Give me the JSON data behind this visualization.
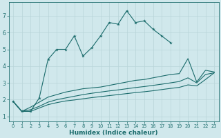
{
  "title": "",
  "xlabel": "Humidex (Indice chaleur)",
  "bg_color": "#d0e8ec",
  "grid_color": "#b8d4d8",
  "line_color": "#1a6b6b",
  "x": [
    0,
    1,
    2,
    3,
    4,
    5,
    6,
    7,
    8,
    9,
    10,
    11,
    12,
    13,
    14,
    15,
    16,
    17,
    18,
    19,
    20,
    21,
    22,
    23
  ],
  "line1_x": [
    0,
    1,
    2,
    3,
    4,
    5,
    6,
    7,
    8,
    9,
    10,
    11,
    12,
    13,
    14,
    15,
    16,
    17,
    18
  ],
  "line1_y": [
    1.9,
    1.3,
    1.3,
    2.1,
    4.4,
    5.0,
    5.0,
    5.8,
    4.6,
    5.1,
    5.8,
    6.6,
    6.5,
    7.3,
    6.6,
    6.7,
    6.2,
    5.8,
    5.4
  ],
  "line3_x": [
    0,
    1,
    2,
    3,
    4,
    5,
    6,
    7,
    8,
    9,
    10,
    11,
    12,
    13,
    14,
    15,
    16,
    17,
    18,
    19,
    20,
    21,
    22,
    23
  ],
  "line3_y": [
    1.9,
    1.3,
    1.55,
    1.85,
    2.15,
    2.3,
    2.45,
    2.55,
    2.65,
    2.7,
    2.75,
    2.85,
    2.95,
    3.05,
    3.15,
    3.2,
    3.3,
    3.4,
    3.5,
    3.55,
    4.45,
    3.05,
    3.75,
    3.65
  ],
  "line4_x": [
    0,
    1,
    2,
    3,
    4,
    5,
    6,
    7,
    8,
    9,
    10,
    11,
    12,
    13,
    14,
    15,
    16,
    17,
    18,
    19,
    20,
    21,
    22,
    23
  ],
  "line4_y": [
    1.9,
    1.3,
    1.4,
    1.6,
    1.85,
    2.0,
    2.1,
    2.2,
    2.3,
    2.38,
    2.45,
    2.52,
    2.58,
    2.65,
    2.72,
    2.78,
    2.85,
    2.92,
    3.0,
    3.08,
    3.3,
    3.0,
    3.5,
    3.6
  ],
  "line5_x": [
    0,
    1,
    2,
    3,
    4,
    5,
    6,
    7,
    8,
    9,
    10,
    11,
    12,
    13,
    14,
    15,
    16,
    17,
    18,
    19,
    20,
    21,
    22,
    23
  ],
  "line5_y": [
    1.9,
    1.3,
    1.3,
    1.5,
    1.7,
    1.82,
    1.92,
    1.98,
    2.05,
    2.12,
    2.18,
    2.24,
    2.3,
    2.36,
    2.42,
    2.47,
    2.53,
    2.6,
    2.67,
    2.73,
    2.88,
    2.82,
    3.2,
    3.6
  ],
  "ylim": [
    0.7,
    7.8
  ],
  "xlim": [
    -0.5,
    23.5
  ],
  "yticks": [
    1,
    2,
    3,
    4,
    5,
    6,
    7
  ],
  "xticks": [
    0,
    1,
    2,
    3,
    4,
    5,
    6,
    7,
    8,
    9,
    10,
    11,
    12,
    13,
    14,
    15,
    16,
    17,
    18,
    19,
    20,
    21,
    22,
    23
  ]
}
